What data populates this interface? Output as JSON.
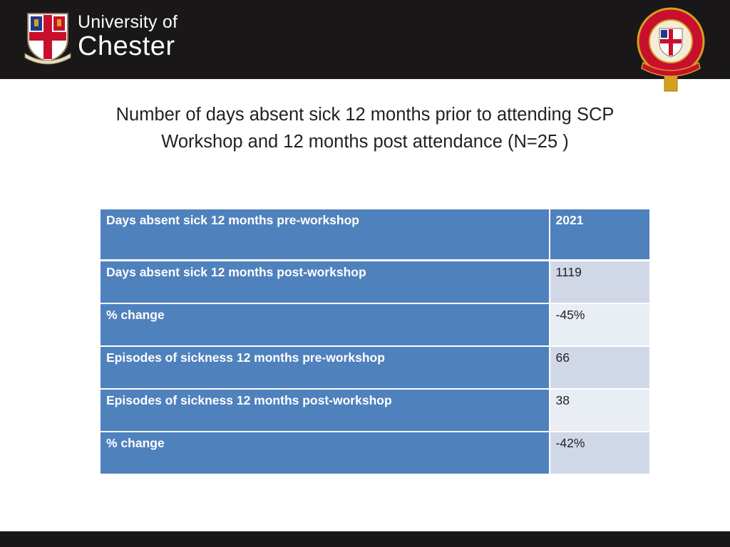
{
  "header": {
    "logo_line1": "University of",
    "logo_line2": "Chester",
    "crest_icon": "university-crest-icon",
    "seal_icon": "anniversary-seal-icon",
    "colors": {
      "bar": "#1a1718",
      "brand_red": "#c8102e",
      "gold": "#d4a020"
    }
  },
  "title": {
    "line1": "Number of days absent sick 12 months prior to attending SCP",
    "line2": "Workshop and 12 months post attendance (N=25 )"
  },
  "table": {
    "header": {
      "label": "Days absent sick 12 months pre-workshop",
      "value": "2021"
    },
    "rows": [
      {
        "label": "Days absent sick 12 months post-workshop",
        "value": "1119"
      },
      {
        "label": "% change",
        "value": "-45%"
      },
      {
        "label": "Episodes of sickness 12 months pre-workshop",
        "value": "66"
      },
      {
        "label": "Episodes of sickness 12 months post-workshop",
        "value": "38"
      },
      {
        "label": "% change",
        "value": "-42%"
      }
    ],
    "colors": {
      "header_blue": "#4f81bd",
      "row_light": "#d0d8e8",
      "row_lighter": "#e9edf4"
    }
  }
}
